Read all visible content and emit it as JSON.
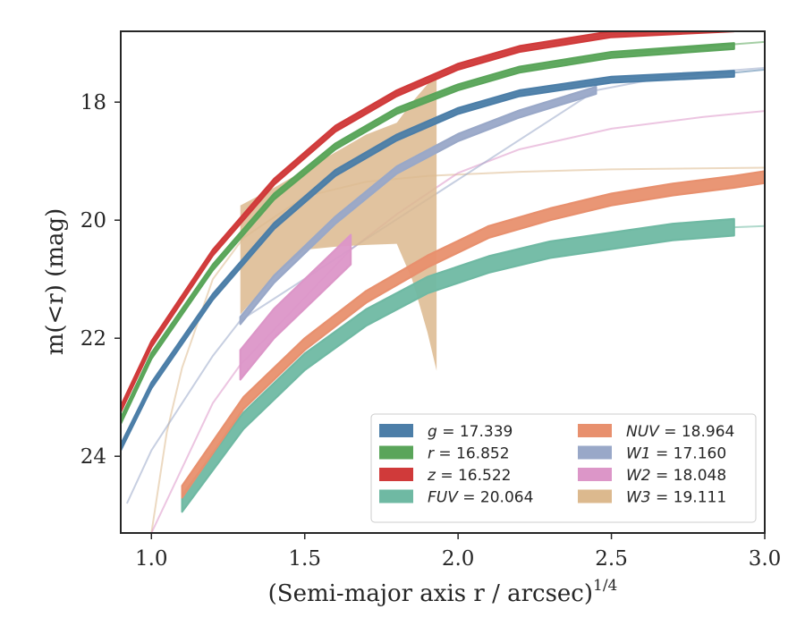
{
  "chart_data": {
    "type": "line",
    "xlabel": "(Semi-major axis r / arcsec)",
    "xlabel_superscript": "1/4",
    "ylabel": "m(<r) (mag)",
    "xlim": [
      0.9,
      3.0
    ],
    "ylim": [
      25.3,
      16.8
    ],
    "y_inverted": true,
    "xticks": [
      1.0,
      1.5,
      2.0,
      2.5,
      3.0
    ],
    "xtick_labels": [
      "1.0",
      "1.5",
      "2.0",
      "2.5",
      "3.0"
    ],
    "yticks": [
      18,
      20,
      22,
      24
    ],
    "ytick_labels": [
      "18",
      "20",
      "22",
      "24"
    ],
    "grid": false,
    "legend_placement": "lower-right",
    "legend_columns": 2,
    "series": [
      {
        "name": "g = 17.339",
        "band": "g",
        "value": "17.339",
        "color": "#4c7ea8",
        "data_x": [
          0.9,
          1.0,
          1.2,
          1.4,
          1.6,
          1.8,
          2.0,
          2.2,
          2.5,
          2.9
        ],
        "data_y": [
          23.85,
          22.8,
          21.3,
          20.1,
          19.2,
          18.6,
          18.15,
          17.85,
          17.62,
          17.52
        ],
        "fit_y": [
          23.85,
          22.8,
          21.3,
          20.1,
          19.2,
          18.6,
          18.15,
          17.85,
          17.62,
          17.5,
          17.45
        ],
        "fit_x": [
          0.9,
          1.0,
          1.2,
          1.4,
          1.6,
          1.8,
          2.0,
          2.2,
          2.5,
          2.9,
          3.0
        ],
        "band_halfwidth": 0.05
      },
      {
        "name": "r = 16.852",
        "band": "r",
        "value": "16.852",
        "color": "#5aa55a",
        "data_x": [
          0.9,
          1.0,
          1.2,
          1.4,
          1.6,
          1.8,
          2.0,
          2.2,
          2.5,
          2.9
        ],
        "data_y": [
          23.4,
          22.3,
          20.8,
          19.6,
          18.75,
          18.15,
          17.75,
          17.45,
          17.2,
          17.05
        ],
        "fit_x": [
          0.9,
          1.0,
          1.2,
          1.4,
          1.6,
          1.8,
          2.0,
          2.2,
          2.5,
          2.9,
          3.0
        ],
        "fit_y": [
          23.4,
          22.3,
          20.8,
          19.6,
          18.75,
          18.15,
          17.75,
          17.45,
          17.2,
          17.02,
          16.98
        ],
        "band_halfwidth": 0.05
      },
      {
        "name": "z = 16.522",
        "band": "z",
        "value": "16.522",
        "color": "#d03a3a",
        "data_x": [
          0.9,
          1.0,
          1.2,
          1.4,
          1.6,
          1.8,
          2.0,
          2.2,
          2.5,
          2.9
        ],
        "data_y": [
          23.2,
          22.1,
          20.55,
          19.35,
          18.45,
          17.85,
          17.4,
          17.1,
          16.85,
          16.75
        ],
        "fit_x": [
          0.9,
          1.0,
          1.2,
          1.4,
          1.6,
          1.8,
          2.0,
          2.2,
          2.5,
          2.9,
          3.0
        ],
        "fit_y": [
          23.2,
          22.1,
          20.55,
          19.35,
          18.45,
          17.85,
          17.4,
          17.1,
          16.85,
          16.72,
          16.67
        ],
        "band_halfwidth": 0.05
      },
      {
        "name": "FUV = 20.064",
        "band": "FUV",
        "value": "20.064",
        "color": "#6fb9a3",
        "data_x": [
          1.1,
          1.3,
          1.5,
          1.7,
          1.9,
          2.1,
          2.3,
          2.5,
          2.7,
          2.9
        ],
        "data_y": [
          24.8,
          23.4,
          22.4,
          21.65,
          21.1,
          20.75,
          20.5,
          20.35,
          20.2,
          20.12
        ],
        "fit_x": [
          2.9,
          3.0
        ],
        "fit_y": [
          20.12,
          20.1
        ],
        "band_halfwidth": 0.14
      },
      {
        "name": "NUV = 18.964",
        "band": "NUV",
        "value": "18.964",
        "color": "#e8906e",
        "data_x": [
          1.1,
          1.3,
          1.5,
          1.7,
          1.9,
          2.1,
          2.3,
          2.5,
          2.7,
          2.9,
          3.0
        ],
        "data_y": [
          24.6,
          23.1,
          22.1,
          21.3,
          20.7,
          20.2,
          19.9,
          19.65,
          19.48,
          19.35,
          19.27
        ],
        "fit_x": [],
        "fit_y": [],
        "band_halfwidth": 0.1
      },
      {
        "name": "W1 = 17.160",
        "band": "W1",
        "value": "17.160",
        "color": "#99a8c8",
        "data_x": [
          1.29,
          1.4,
          1.6,
          1.8,
          2.0,
          2.2,
          2.45
        ],
        "data_y": [
          21.7,
          21.0,
          20.0,
          19.15,
          18.6,
          18.2,
          17.8
        ],
        "fit_x": [
          0.92,
          1.0,
          1.2,
          1.29,
          2.45,
          2.6,
          2.8,
          3.0
        ],
        "fit_y": [
          24.8,
          23.9,
          22.3,
          21.7,
          17.8,
          17.65,
          17.5,
          17.42
        ],
        "band_halfwidth": 0.06
      },
      {
        "name": "W2 = 18.048",
        "band": "W2",
        "value": "18.048",
        "color": "#dc96c8",
        "data_x": [
          1.29,
          1.4,
          1.55,
          1.65
        ],
        "data_y": [
          22.45,
          21.75,
          21.0,
          20.5
        ],
        "fit_x": [
          1.0,
          1.2,
          1.29,
          1.65,
          1.8,
          2.0,
          2.2,
          2.5,
          2.8,
          3.0
        ],
        "fit_y": [
          25.3,
          23.1,
          22.45,
          20.5,
          19.9,
          19.2,
          18.8,
          18.45,
          18.25,
          18.15
        ],
        "band_halfwidth": 0.25
      },
      {
        "name": "W3 = 19.111",
        "band": "W3",
        "value": "19.111",
        "color": "#dcb98e",
        "data_x": [
          1.29,
          1.4,
          1.5,
          1.6,
          1.7,
          1.8,
          1.85,
          1.9,
          1.93
        ],
        "data_upper": [
          19.75,
          19.45,
          19.15,
          18.85,
          18.55,
          18.35,
          18.0,
          17.7,
          17.5
        ],
        "data_lower": [
          21.6,
          20.95,
          20.5,
          20.45,
          20.42,
          20.4,
          21.0,
          21.9,
          22.55
        ],
        "fit_x": [
          1.0,
          1.05,
          1.1,
          1.2,
          1.3,
          1.5,
          1.7,
          1.9,
          2.2,
          2.5,
          3.0
        ],
        "fit_y": [
          25.3,
          23.6,
          22.5,
          21.0,
          20.3,
          19.6,
          19.35,
          19.25,
          19.18,
          19.14,
          19.11
        ],
        "band_halfwidth": 0
      }
    ]
  }
}
